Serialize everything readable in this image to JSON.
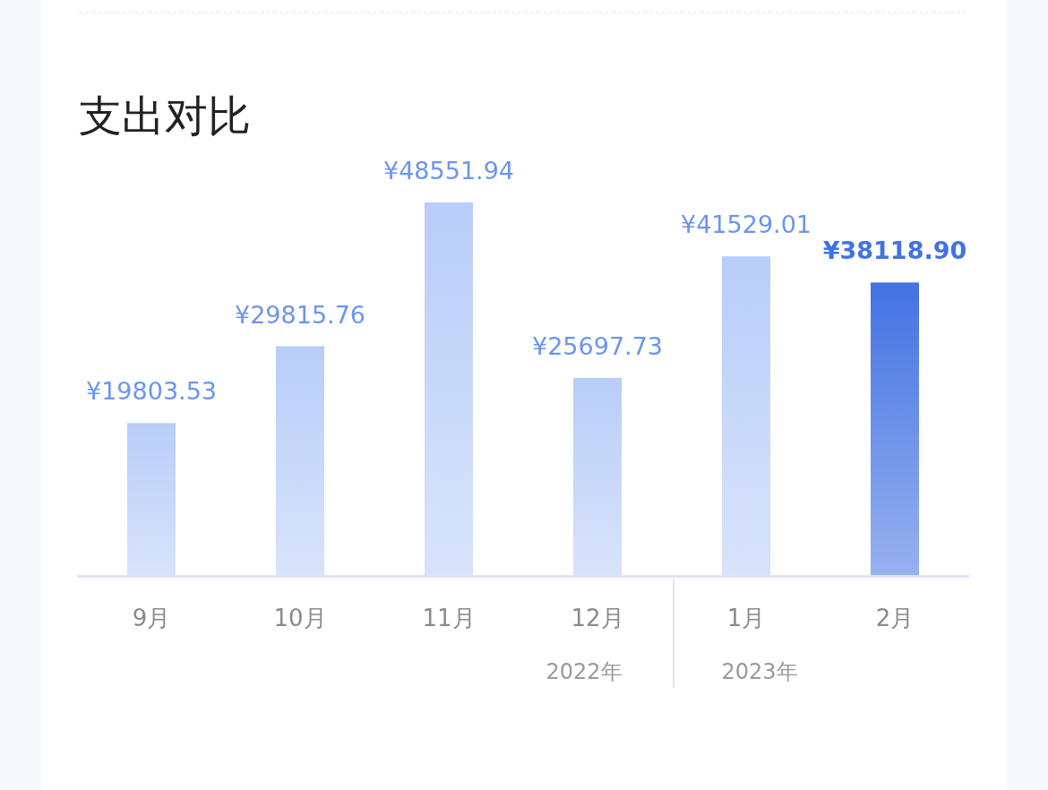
{
  "chart_data": {
    "type": "bar",
    "title": "支出对比",
    "categories": [
      "9月",
      "10月",
      "11月",
      "12月",
      "1月",
      "2月"
    ],
    "values": [
      19803.53,
      29815.76,
      48551.94,
      25697.73,
      41529.01,
      38118.9
    ],
    "value_labels": [
      "¥19803.53",
      "¥29815.76",
      "¥48551.94",
      "¥25697.73",
      "¥41529.01",
      "¥38118.90"
    ],
    "colors": [
      "#b8cdf8",
      "#b8cdf8",
      "#b8cdf8",
      "#b8cdf8",
      "#b8cdf8",
      "#4272e2"
    ],
    "annotations": [
      "2022年",
      "2023年"
    ]
  }
}
